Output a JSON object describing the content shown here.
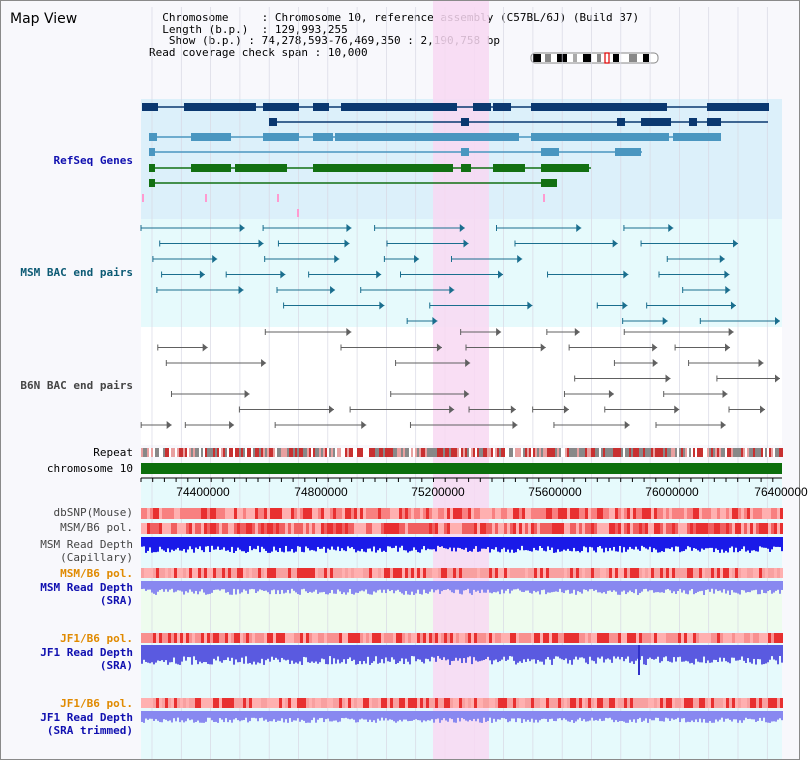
{
  "app": {
    "title": "Map View"
  },
  "info": {
    "chromosome_label": "Chromosome",
    "chromosome_value": "Chromosome 10, reference assembly (C57BL/6J) (Build 37)",
    "length_label": "Length (b.p.)",
    "length_value": "129,993,255",
    "show_label": "Show (b.p.)",
    "show_value": "74,278,593-76,469,350 : 2,190,758 bp",
    "span_label": "Read coverage check span",
    "span_value": "10,000"
  },
  "tracks": {
    "refseq": "RefSeq Genes",
    "msm_bac": "MSM BAC end pairs",
    "b6n_bac": "B6N BAC end pairs",
    "repeat": "Repeat",
    "chromosome": "chromosome 10",
    "dbsnp": "dbSNP(Mouse)",
    "msm_b6_pol": "MSM/B6 pol.",
    "msm_depth_cap_1": "MSM Read Depth",
    "msm_depth_cap_2": "(Capillary)",
    "msm_b6_pol_2": "MSM/B6 pol.",
    "msm_depth_sra_1": "MSM Read Depth",
    "msm_depth_sra_2": "(SRA)",
    "jf1_b6_pol": "JF1/B6 pol.",
    "jf1_depth_sra_1": "JF1 Read Depth",
    "jf1_depth_sra_2": "(SRA)",
    "jf1_b6_pol_2": "JF1/B6 pol.",
    "jf1_depth_trim_1": "JF1 Read Depth",
    "jf1_depth_trim_2": "(SRA trimmed)"
  },
  "axis": {
    "ticks": [
      "74400000",
      "74800000",
      "75200000",
      "75600000",
      "76000000",
      "76400000"
    ]
  },
  "colors": {
    "refseq_bg": "#dcf0fa",
    "bac_bg": "#e6fafc",
    "highlight": "#f8d8f2",
    "gene_dark": "#0a3870",
    "gene_mid": "#4a96c0",
    "gene_green": "#127012",
    "chromosome_bar": "#0c6e0c",
    "depth_blue": "#1a1ae8",
    "depth_light": "#8888f0",
    "pol_red": "#f05050"
  }
}
